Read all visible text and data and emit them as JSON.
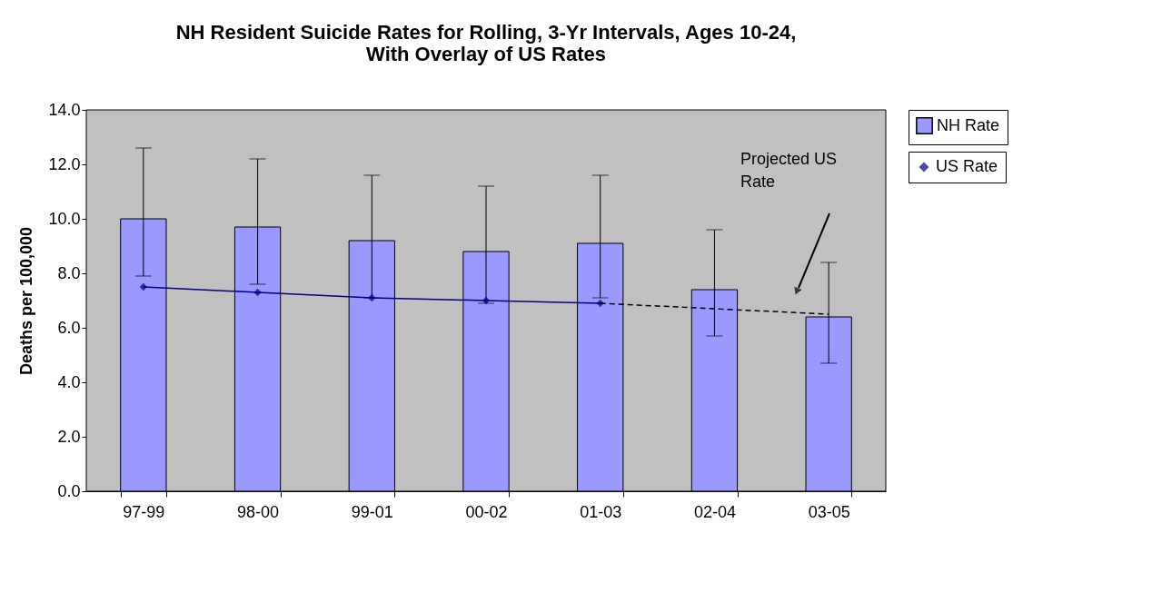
{
  "chart_data": {
    "type": "bar",
    "title": "NH Resident Suicide Rates for Rolling, 3-Yr Intervals, Ages 10-24, With Overlay of US Rates",
    "ylabel": "Deaths per 100,000",
    "categories": [
      "97-99",
      "98-00",
      "99-01",
      "00-02",
      "01-03",
      "02-04",
      "03-05"
    ],
    "series": [
      {
        "name": "NH Rate",
        "color": "#9999ff",
        "values": [
          10.0,
          9.7,
          9.2,
          8.8,
          9.1,
          7.4,
          6.4
        ],
        "errors": [
          [
            7.9,
            12.6
          ],
          [
            7.6,
            12.2
          ],
          [
            7.1,
            11.6
          ],
          [
            6.9,
            11.2
          ],
          [
            7.1,
            11.6
          ],
          [
            5.7,
            9.6
          ],
          [
            4.7,
            8.4
          ]
        ]
      },
      {
        "name": "US Rate",
        "type": "line",
        "color": "#000080",
        "marker": "diamond",
        "line_style": "solid",
        "values": [
          7.5,
          7.3,
          7.1,
          7.0,
          6.9,
          null,
          null
        ]
      },
      {
        "type": "line",
        "color": "#000000",
        "marker": "none",
        "line_style": "dashed",
        "values": [
          null,
          null,
          null,
          null,
          6.9,
          6.7,
          6.5
        ]
      }
    ],
    "ylim": [
      0,
      14
    ],
    "yticks": [
      {
        "value": 0,
        "label": "0.0"
      },
      {
        "value": 2,
        "label": "2.0"
      },
      {
        "value": 4,
        "label": "4.0"
      },
      {
        "value": 6,
        "label": "6.0"
      },
      {
        "value": 8,
        "label": "8.0"
      },
      {
        "value": 10,
        "label": "10.0"
      },
      {
        "value": 12,
        "label": "12.0"
      },
      {
        "value": 14,
        "label": "14.0"
      }
    ],
    "grid": false,
    "legend": "right",
    "annotations": [
      "Projected US Rate"
    ]
  }
}
